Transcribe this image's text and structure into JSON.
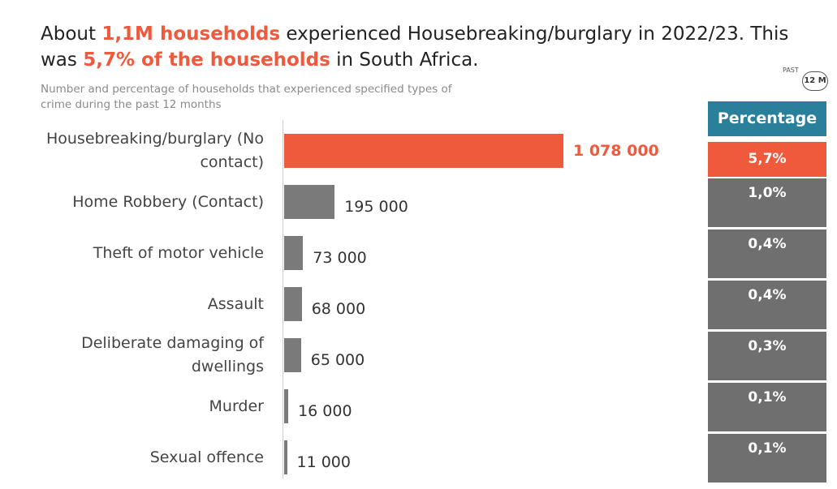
{
  "chart_data": {
    "type": "bar",
    "title_segments": [
      {
        "text": "About ",
        "color": "#222222"
      },
      {
        "text": "1,1M households",
        "color": "#f05a3c"
      },
      {
        "text": " experienced Housebreaking/burglary in 2022/23. This was ",
        "color": "#222222"
      },
      {
        "text": "5,7% of the households",
        "color": "#f05a3c"
      },
      {
        "text": " in South Africa.",
        "color": "#222222"
      }
    ],
    "subtitle": "Number and percentage of households that experienced specified types of crime during the past 12 months",
    "badge": [
      "PAST",
      "12 M"
    ],
    "categories": [
      "Housebreaking/burglary (No contact)",
      "Home Robbery (Contact)",
      "Theft of motor vehicle",
      "Assault",
      "Deliberate damaging of dwellings",
      "Murder",
      "Sexual offence"
    ],
    "values": [
      1078000,
      195000,
      73000,
      68000,
      65000,
      16000,
      11000
    ],
    "value_labels": [
      "1 078 000",
      "195 000",
      "73 000",
      "68 000",
      "65 000",
      "16 000",
      "11 000"
    ],
    "colors": [
      "#f05a3c",
      "#7a7a7a",
      "#7a7a7a",
      "#7a7a7a",
      "#7a7a7a",
      "#7a7a7a",
      "#7a7a7a"
    ],
    "highlight_color": "#f05a3c",
    "percentage_header": "Percentage",
    "header_color": "#2a7f9a",
    "percentages": [
      5.7,
      1.0,
      0.4,
      0.4,
      0.3,
      0.1,
      0.1
    ],
    "percentage_labels": [
      "5,7%",
      "1,0%",
      "0,4%",
      "0,4%",
      "0,3%",
      "0,1%",
      "0,1%"
    ],
    "cell_color": "#6f6f6f"
  }
}
